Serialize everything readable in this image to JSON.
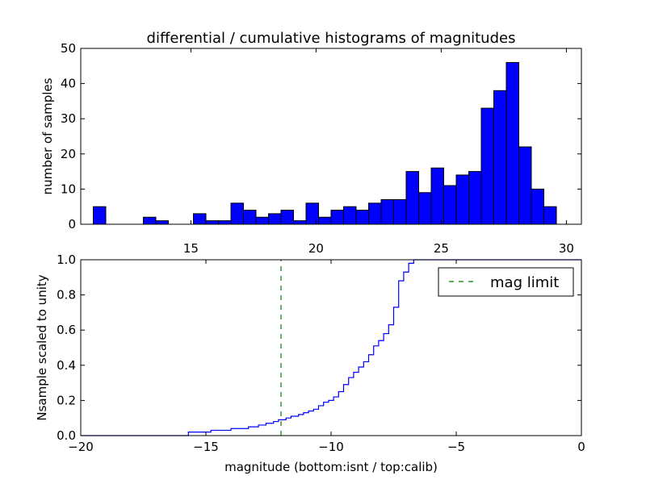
{
  "chart_data": [
    {
      "type": "bar",
      "title": "differential / cumulative histograms of magnitudes",
      "xlabel": "",
      "ylabel": "number of samples",
      "xlim": [
        10.6,
        30.6
      ],
      "ylim": [
        0,
        50
      ],
      "xticks": [
        "15",
        "20",
        "25",
        "30"
      ],
      "yticks": [
        "0",
        "10",
        "20",
        "30",
        "40",
        "50"
      ],
      "bar_color": "#0000ff",
      "bin_width": 0.5,
      "bins_start": [
        11.1,
        11.6,
        12.1,
        12.6,
        13.1,
        13.6,
        14.1,
        14.6,
        15.1,
        15.6,
        16.1,
        16.6,
        17.1,
        17.6,
        18.1,
        18.6,
        19.1,
        19.6,
        20.1,
        20.6,
        21.1,
        21.6,
        22.1,
        22.6,
        23.1,
        23.6,
        24.1,
        24.6,
        25.1,
        25.6,
        26.1,
        26.6,
        27.1,
        27.6,
        28.1,
        28.6,
        29.1
      ],
      "values": [
        5,
        0,
        0,
        0,
        2,
        1,
        0,
        0,
        3,
        1,
        1,
        6,
        4,
        2,
        3,
        4,
        1,
        6,
        2,
        4,
        5,
        4,
        6,
        7,
        7,
        15,
        9,
        16,
        11,
        14,
        15,
        33,
        38,
        46,
        22,
        10,
        5
      ],
      "grid": false
    },
    {
      "type": "line",
      "title": "",
      "xlabel": "magnitude (bottom:isnt / top:calib)",
      "ylabel": "Nsample scaled to unity",
      "xlim": [
        -20,
        0
      ],
      "ylim": [
        0,
        1
      ],
      "xticks": [
        "−20",
        "−15",
        "−10",
        "−5",
        "0"
      ],
      "yticks": [
        "0.0",
        "0.2",
        "0.4",
        "0.6",
        "0.8",
        "1.0"
      ],
      "legend_position": "top-right",
      "grid": false,
      "series": [
        {
          "color": "#0000ff",
          "style": "step",
          "x": [
            -20,
            -15.7,
            -14.8,
            -14.0,
            -13.3,
            -12.9,
            -12.6,
            -12.3,
            -12.1,
            -11.8,
            -11.6,
            -11.3,
            -11.1,
            -10.9,
            -10.7,
            -10.5,
            -10.3,
            -10.1,
            -9.9,
            -9.7,
            -9.5,
            -9.3,
            -9.1,
            -8.9,
            -8.7,
            -8.5,
            -8.3,
            -8.1,
            -7.9,
            -7.7,
            -7.5,
            -7.3,
            -7.1,
            -6.9,
            -6.7,
            0
          ],
          "y": [
            0.0,
            0.02,
            0.03,
            0.04,
            0.05,
            0.06,
            0.07,
            0.08,
            0.09,
            0.1,
            0.11,
            0.12,
            0.13,
            0.14,
            0.15,
            0.17,
            0.19,
            0.2,
            0.22,
            0.25,
            0.29,
            0.33,
            0.36,
            0.39,
            0.42,
            0.46,
            0.51,
            0.54,
            0.58,
            0.63,
            0.73,
            0.88,
            0.93,
            0.98,
            1.0,
            1.0
          ]
        },
        {
          "name": "mag limit",
          "color": "#007f00",
          "style": "dashed-vertical",
          "x": [
            -12.0,
            -12.0
          ],
          "y": [
            0,
            1
          ]
        }
      ]
    }
  ]
}
